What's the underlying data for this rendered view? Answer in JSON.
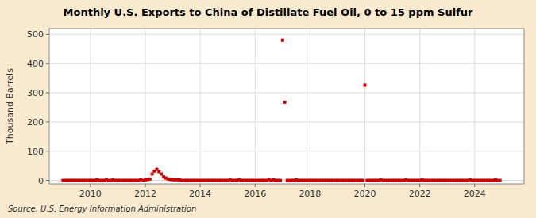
{
  "chart_data": {
    "type": "scatter",
    "title": "Monthly U.S. Exports to China of Distillate Fuel Oil, 0 to 15 ppm Sulfur",
    "ylabel": "Thousand Barrels",
    "annotations": [
      "Source: U.S. Energy Information Administration"
    ],
    "color": "#cc0000",
    "marker": "square",
    "grid": true,
    "xlim": [
      2008.5,
      2025.8
    ],
    "xticks": [
      2010,
      2012,
      2014,
      2016,
      2018,
      2020,
      2022,
      2024
    ],
    "ylim": [
      -12,
      520
    ],
    "yticks": [
      0,
      100,
      200,
      300,
      400,
      500
    ],
    "x": [
      2009.0,
      2009.08,
      2009.17,
      2009.25,
      2009.33,
      2009.42,
      2009.5,
      2009.58,
      2009.67,
      2009.75,
      2009.83,
      2009.92,
      2010.0,
      2010.08,
      2010.17,
      2010.25,
      2010.33,
      2010.42,
      2010.5,
      2010.58,
      2010.67,
      2010.75,
      2010.83,
      2010.92,
      2011.0,
      2011.08,
      2011.17,
      2011.25,
      2011.33,
      2011.42,
      2011.5,
      2011.58,
      2011.67,
      2011.75,
      2011.83,
      2011.92,
      2012.0,
      2012.08,
      2012.17,
      2012.25,
      2012.33,
      2012.42,
      2012.5,
      2012.58,
      2012.67,
      2012.75,
      2012.83,
      2012.92,
      2013.0,
      2013.08,
      2013.17,
      2013.25,
      2013.33,
      2013.42,
      2013.5,
      2013.58,
      2013.67,
      2013.75,
      2013.83,
      2013.92,
      2014.0,
      2014.08,
      2014.17,
      2014.25,
      2014.33,
      2014.42,
      2014.5,
      2014.58,
      2014.67,
      2014.75,
      2014.83,
      2014.92,
      2015.0,
      2015.08,
      2015.17,
      2015.25,
      2015.33,
      2015.42,
      2015.5,
      2015.58,
      2015.67,
      2015.75,
      2015.83,
      2015.92,
      2016.0,
      2016.08,
      2016.17,
      2016.25,
      2016.33,
      2016.42,
      2016.5,
      2016.58,
      2016.67,
      2016.75,
      2016.83,
      2016.92,
      2017.0,
      2017.08,
      2017.17,
      2017.25,
      2017.33,
      2017.42,
      2017.5,
      2017.58,
      2017.67,
      2017.75,
      2017.83,
      2017.92,
      2018.0,
      2018.08,
      2018.17,
      2018.25,
      2018.33,
      2018.42,
      2018.5,
      2018.58,
      2018.67,
      2018.75,
      2018.83,
      2018.92,
      2019.0,
      2019.08,
      2019.17,
      2019.25,
      2019.33,
      2019.42,
      2019.5,
      2019.58,
      2019.67,
      2019.75,
      2019.83,
      2019.92,
      2020.0,
      2020.08,
      2020.17,
      2020.25,
      2020.33,
      2020.42,
      2020.5,
      2020.58,
      2020.67,
      2020.75,
      2020.83,
      2020.92,
      2021.0,
      2021.08,
      2021.17,
      2021.25,
      2021.33,
      2021.42,
      2021.5,
      2021.58,
      2021.67,
      2021.75,
      2021.83,
      2021.92,
      2022.0,
      2022.08,
      2022.17,
      2022.25,
      2022.33,
      2022.42,
      2022.5,
      2022.58,
      2022.67,
      2022.75,
      2022.83,
      2022.92,
      2023.0,
      2023.08,
      2023.17,
      2023.25,
      2023.33,
      2023.42,
      2023.5,
      2023.58,
      2023.67,
      2023.75,
      2023.83,
      2023.92,
      2024.0,
      2024.08,
      2024.17,
      2024.25,
      2024.33,
      2024.42,
      2024.5,
      2024.58,
      2024.67,
      2024.75,
      2024.83,
      2024.92
    ],
    "values": [
      0,
      0,
      0,
      0,
      0,
      0,
      0,
      0,
      0,
      0,
      0,
      0,
      0,
      0,
      0,
      2,
      0,
      0,
      0,
      3,
      0,
      0,
      2,
      0,
      0,
      0,
      0,
      0,
      0,
      0,
      0,
      0,
      0,
      0,
      3,
      0,
      2,
      3,
      5,
      22,
      32,
      38,
      30,
      22,
      12,
      8,
      5,
      3,
      3,
      2,
      2,
      2,
      0,
      0,
      0,
      0,
      0,
      0,
      0,
      0,
      0,
      0,
      0,
      0,
      0,
      0,
      0,
      0,
      0,
      0,
      0,
      0,
      0,
      2,
      0,
      0,
      0,
      2,
      0,
      0,
      0,
      0,
      0,
      0,
      0,
      0,
      0,
      0,
      0,
      0,
      3,
      0,
      2,
      0,
      0,
      0,
      480,
      268,
      0,
      0,
      0,
      0,
      2,
      0,
      0,
      0,
      0,
      0,
      0,
      0,
      0,
      0,
      0,
      0,
      0,
      0,
      0,
      0,
      0,
      0,
      0,
      0,
      0,
      0,
      0,
      0,
      0,
      0,
      0,
      0,
      0,
      0,
      326,
      0,
      0,
      0,
      0,
      0,
      0,
      2,
      0,
      0,
      0,
      0,
      0,
      0,
      0,
      0,
      0,
      0,
      2,
      0,
      0,
      0,
      0,
      0,
      0,
      2,
      0,
      0,
      0,
      0,
      0,
      0,
      0,
      0,
      0,
      0,
      0,
      0,
      0,
      0,
      0,
      0,
      0,
      0,
      0,
      0,
      2,
      0,
      0,
      0,
      0,
      0,
      0,
      0,
      0,
      0,
      0,
      2,
      0,
      0
    ]
  }
}
